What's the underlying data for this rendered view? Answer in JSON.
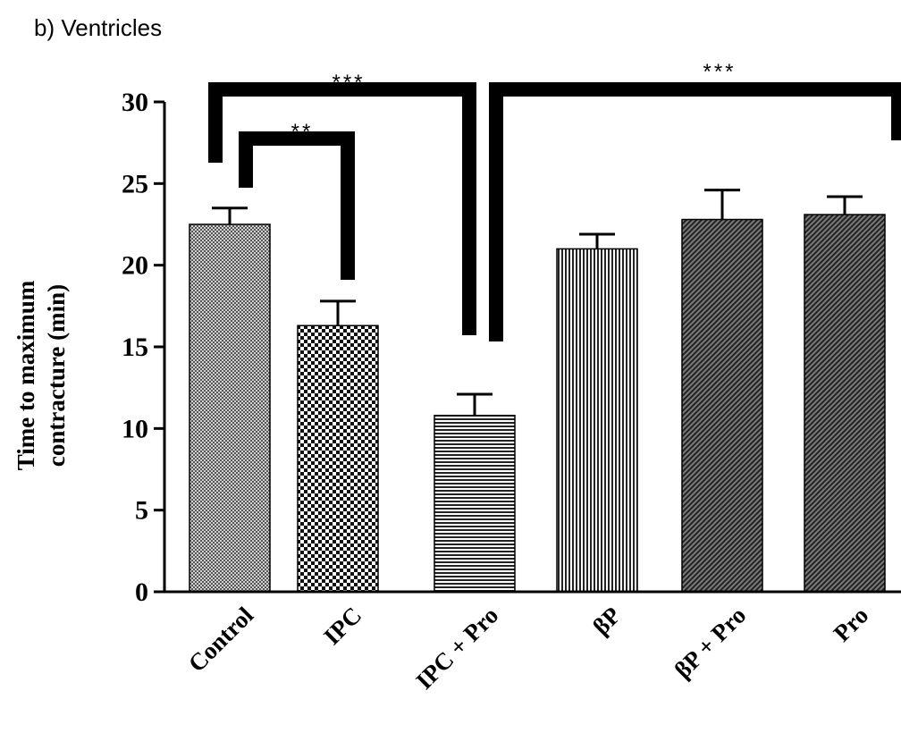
{
  "panel_label": "b) Ventricles",
  "colors": {
    "bar_fill": "#444444",
    "axis": "#000000",
    "background": "#ffffff"
  },
  "chart_data": {
    "type": "bar",
    "title": "",
    "ylabel_line1": "Time to maximum",
    "ylabel_line2": "contracture (min)",
    "xlabel": "",
    "ylim": [
      0,
      30
    ],
    "yticks": [
      "0",
      "5",
      "10",
      "15",
      "20",
      "25",
      "30"
    ],
    "categories": [
      "Control",
      "IPC",
      "IPC + Pro",
      "βP",
      "βP + Pro",
      "Pro"
    ],
    "values": [
      22.5,
      16.3,
      10.8,
      21.0,
      22.8,
      23.1
    ],
    "errors": [
      1.0,
      1.5,
      1.3,
      0.9,
      1.8,
      1.1
    ],
    "patterns": [
      "fine-checker",
      "coarse-checker",
      "horizontal-lines",
      "vertical-lines",
      "diagonal-lines",
      "diagonal-lines"
    ],
    "significance": [
      {
        "from": "Control",
        "to": "IPC + Pro",
        "label": "***"
      },
      {
        "from": "Control",
        "to": "IPC",
        "label": "**"
      },
      {
        "from": "IPC + Pro",
        "to": "Pro",
        "label": "***"
      }
    ],
    "grid": false,
    "legend": "none"
  }
}
